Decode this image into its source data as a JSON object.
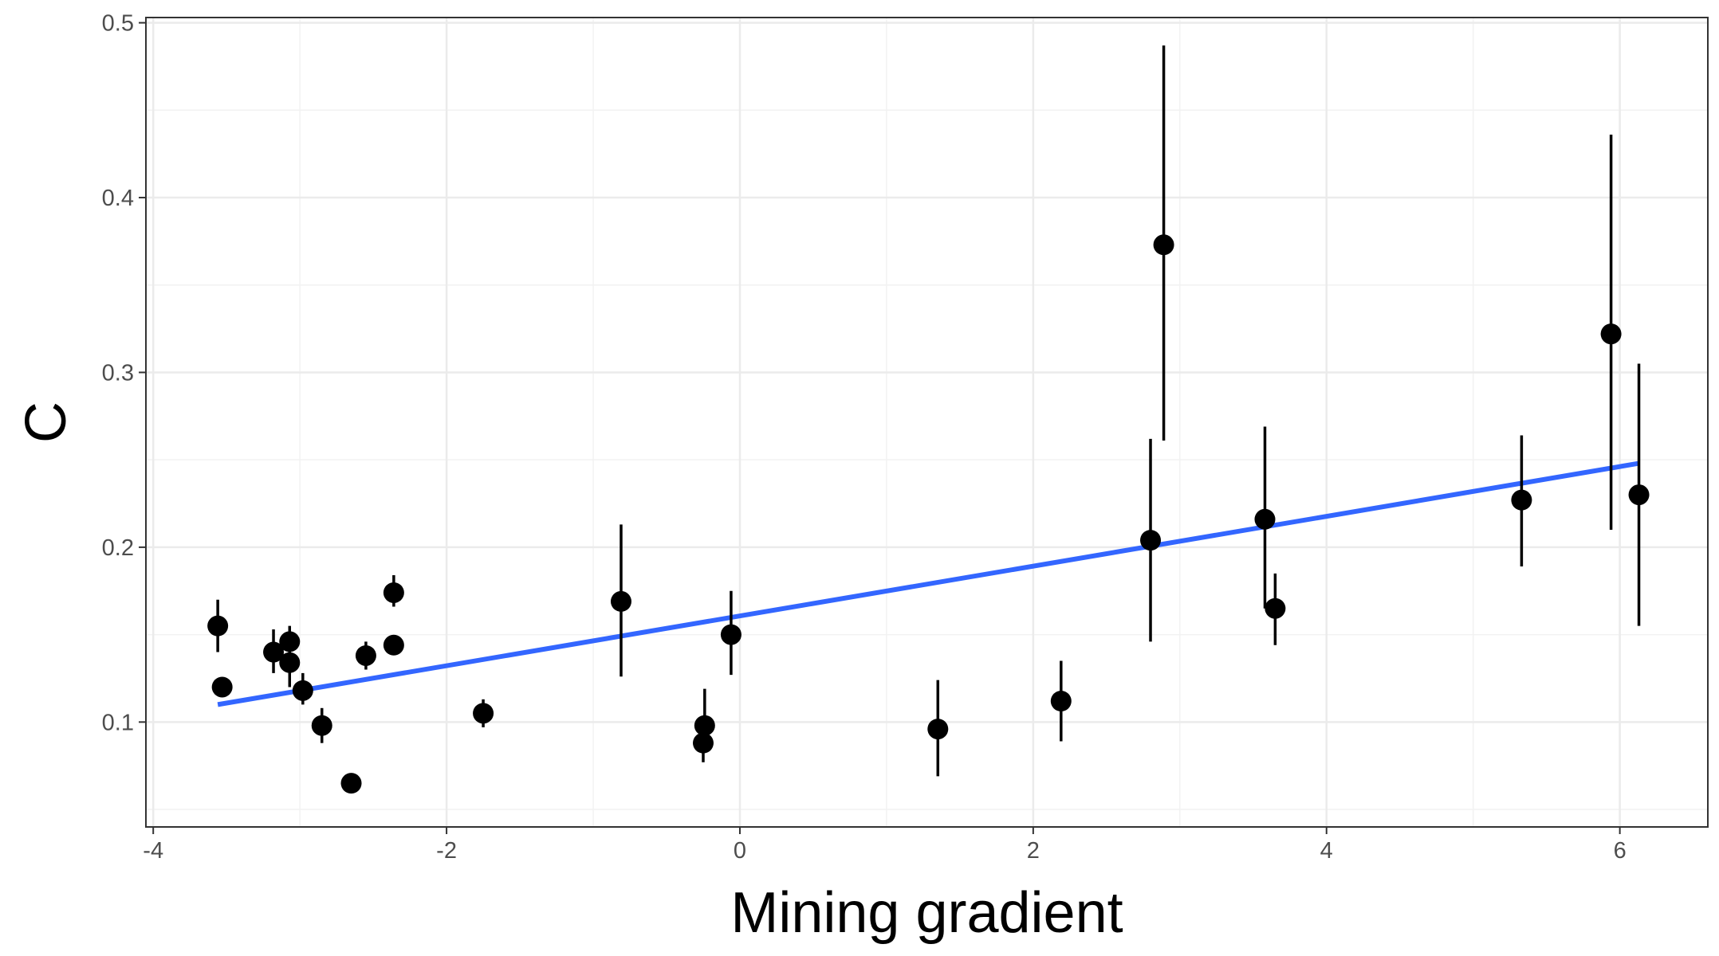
{
  "chart_data": {
    "type": "scatter",
    "title": "",
    "xlabel": "Mining gradient",
    "ylabel": "C",
    "xlim": [
      -4.05,
      6.6
    ],
    "ylim": [
      0.04,
      0.503
    ],
    "x_ticks": [
      -4,
      -2,
      0,
      2,
      4,
      6
    ],
    "x_tick_labels": [
      "-4",
      "-2",
      "0",
      "2",
      "4",
      "6"
    ],
    "y_ticks": [
      0.1,
      0.2,
      0.3,
      0.4,
      0.5
    ],
    "y_tick_labels": [
      "0.1",
      "0.2",
      "0.3",
      "0.4",
      "0.5"
    ],
    "grid": true,
    "legend": "none",
    "point_color": "#000000",
    "fit_color": "#3366ff",
    "points": [
      {
        "x": -3.56,
        "y": 0.155,
        "ymin": 0.14,
        "ymax": 0.17
      },
      {
        "x": -3.53,
        "y": 0.12,
        "ymin": 0.115,
        "ymax": 0.125
      },
      {
        "x": -3.18,
        "y": 0.14,
        "ymin": 0.128,
        "ymax": 0.153
      },
      {
        "x": -3.07,
        "y": 0.146,
        "ymin": 0.136,
        "ymax": 0.155
      },
      {
        "x": -3.07,
        "y": 0.134,
        "ymin": 0.12,
        "ymax": 0.146
      },
      {
        "x": -2.98,
        "y": 0.118,
        "ymin": 0.11,
        "ymax": 0.128
      },
      {
        "x": -2.85,
        "y": 0.098,
        "ymin": 0.088,
        "ymax": 0.108
      },
      {
        "x": -2.65,
        "y": 0.065,
        "ymin": 0.062,
        "ymax": 0.068
      },
      {
        "x": -2.55,
        "y": 0.138,
        "ymin": 0.13,
        "ymax": 0.146
      },
      {
        "x": -2.36,
        "y": 0.174,
        "ymin": 0.166,
        "ymax": 0.184
      },
      {
        "x": -2.36,
        "y": 0.144,
        "ymin": 0.139,
        "ymax": 0.149
      },
      {
        "x": -1.75,
        "y": 0.105,
        "ymin": 0.097,
        "ymax": 0.113
      },
      {
        "x": -0.81,
        "y": 0.169,
        "ymin": 0.126,
        "ymax": 0.213
      },
      {
        "x": -0.24,
        "y": 0.098,
        "ymin": 0.085,
        "ymax": 0.119
      },
      {
        "x": -0.25,
        "y": 0.088,
        "ymin": 0.077,
        "ymax": 0.098
      },
      {
        "x": -0.06,
        "y": 0.15,
        "ymin": 0.127,
        "ymax": 0.175
      },
      {
        "x": 1.35,
        "y": 0.096,
        "ymin": 0.069,
        "ymax": 0.124
      },
      {
        "x": 2.19,
        "y": 0.112,
        "ymin": 0.089,
        "ymax": 0.135
      },
      {
        "x": 2.8,
        "y": 0.204,
        "ymin": 0.146,
        "ymax": 0.262
      },
      {
        "x": 2.89,
        "y": 0.373,
        "ymin": 0.261,
        "ymax": 0.487
      },
      {
        "x": 3.58,
        "y": 0.216,
        "ymin": 0.165,
        "ymax": 0.269
      },
      {
        "x": 3.65,
        "y": 0.165,
        "ymin": 0.144,
        "ymax": 0.185
      },
      {
        "x": 5.33,
        "y": 0.227,
        "ymin": 0.189,
        "ymax": 0.264
      },
      {
        "x": 5.94,
        "y": 0.322,
        "ymin": 0.21,
        "ymax": 0.436
      },
      {
        "x": 6.13,
        "y": 0.23,
        "ymin": 0.155,
        "ymax": 0.305
      }
    ],
    "fit_line": {
      "x": [
        -3.56,
        6.13
      ],
      "y": [
        0.11,
        0.248
      ]
    }
  }
}
